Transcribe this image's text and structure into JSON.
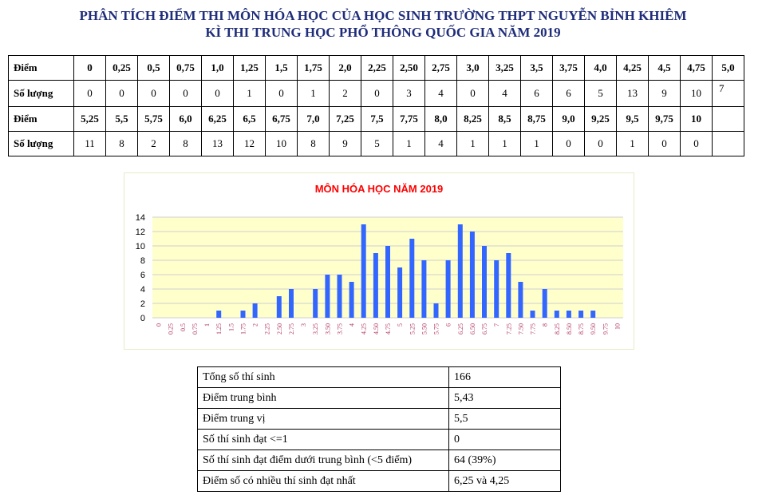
{
  "header": {
    "line1": "PHÂN TÍCH ĐIỂM THI MÔN HÓA HỌC CỦA HỌC SINH TRƯỜNG THPT NGUYỄN BỈNH KHIÊM",
    "line2": "KÌ THI TRUNG HỌC PHỔ THÔNG QUỐC GIA NĂM 2019"
  },
  "score_table": {
    "score_label": "Điểm",
    "count_label": "Số lượng",
    "row1_scores": [
      "0",
      "0,25",
      "0,5",
      "0,75",
      "1,0",
      "1,25",
      "1,5",
      "1,75",
      "2,0",
      "2,25",
      "2,50",
      "2,75",
      "3,0",
      "3,25",
      "3,5",
      "3,75",
      "4,0",
      "4,25",
      "4,5",
      "4,75",
      "5,0"
    ],
    "row1_counts": [
      "0",
      "0",
      "0",
      "0",
      "0",
      "1",
      "0",
      "1",
      "2",
      "0",
      "3",
      "4",
      "0",
      "4",
      "6",
      "6",
      "5",
      "13",
      "9",
      "10",
      "7"
    ],
    "row2_scores": [
      "5,25",
      "5,5",
      "5,75",
      "6,0",
      "6,25",
      "6,5",
      "6,75",
      "7,0",
      "7,25",
      "7,5",
      "7,75",
      "8,0",
      "8,25",
      "8,5",
      "8,75",
      "9,0",
      "9,25",
      "9,5",
      "9,75",
      "10"
    ],
    "row2_counts": [
      "11",
      "8",
      "2",
      "8",
      "13",
      "12",
      "10",
      "8",
      "9",
      "5",
      "1",
      "4",
      "1",
      "1",
      "1",
      "0",
      "0",
      "1",
      "0",
      "0"
    ]
  },
  "chart_data": {
    "type": "bar",
    "title": "MÔN HÓA HỌC NĂM 2019",
    "categories": [
      "0",
      "0.25",
      "0.5",
      "0.75",
      "1",
      "1.25",
      "1.5",
      "1.75",
      "2",
      "2.25",
      "2.50",
      "2.75",
      "3",
      "3.25",
      "3.50",
      "3.75",
      "4",
      "4.25",
      "4.50",
      "4.75",
      "5",
      "5.25",
      "5.50",
      "5.75",
      "6",
      "6.25",
      "6.50",
      "6.75",
      "7",
      "7.25",
      "7.50",
      "7.75",
      "8",
      "8.25",
      "8.50",
      "8.75",
      "9.50",
      "9.75",
      "10"
    ],
    "values": [
      0,
      0,
      0,
      0,
      0,
      1,
      0,
      1,
      2,
      0,
      3,
      4,
      0,
      4,
      6,
      6,
      5,
      13,
      9,
      10,
      7,
      11,
      8,
      2,
      8,
      13,
      12,
      10,
      8,
      9,
      5,
      1,
      4,
      1,
      1,
      1,
      1,
      0,
      0
    ],
    "yticks": [
      0,
      2,
      4,
      6,
      8,
      10,
      12,
      14
    ],
    "ylim": [
      0,
      14
    ],
    "grid": true,
    "bar_color": "#3366ff",
    "plot_bg": "#ffffcc",
    "title_color": "#ff0000",
    "tick_label_color": "#b03060"
  },
  "stats": [
    {
      "label": "Tổng số thí sinh",
      "value": "166"
    },
    {
      "label": "Điểm trung bình",
      "value": "5,43"
    },
    {
      "label": "Điểm trung vị",
      "value": "5,5"
    },
    {
      "label": "Số thí sinh đạt <=1",
      "value": "0"
    },
    {
      "label": "Số thí sinh đạt điểm dưới trung bình (<5 điểm)",
      "value": "64 (39%)"
    },
    {
      "label": "Điểm số có nhiều thí sinh đạt nhất",
      "value": "6,25 và 4,25"
    }
  ]
}
